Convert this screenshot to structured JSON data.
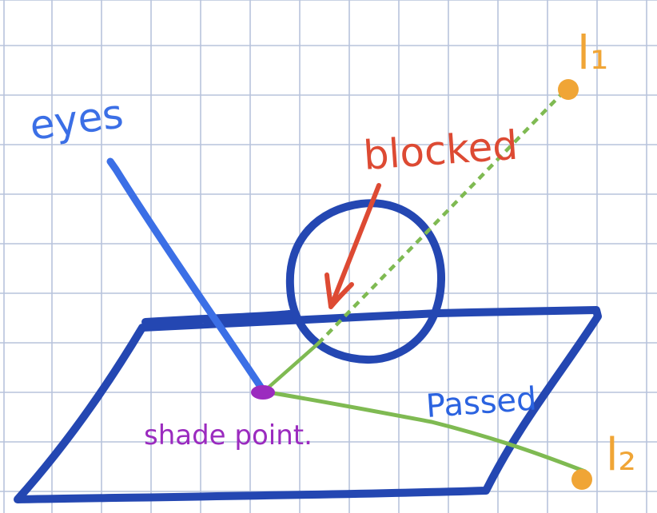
{
  "labels": {
    "eyes": "eyes",
    "blocked": "blocked",
    "passed": "Passed",
    "shade_point": "shade point.",
    "light1": "l₁",
    "light2": "l₂"
  },
  "colors": {
    "grid": "#b7c3dc",
    "plane": "#2447b2",
    "sphere": "#2447b2",
    "eye_ray": "#3b6fe6",
    "eye_label": "#3b6fe6",
    "blocked_text": "#dd4a33",
    "blocked_arrow": "#dd4a33",
    "shadow_ray": "#7fba52",
    "shade_point": "#9b2bbf",
    "shade_label": "#9b2bbf",
    "passed_label": "#2b63e0",
    "light": "#f0a536"
  }
}
